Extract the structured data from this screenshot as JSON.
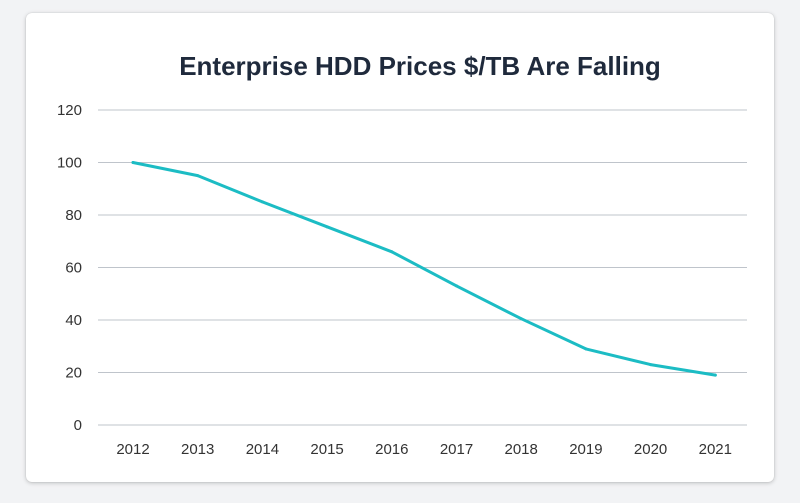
{
  "chart_data": {
    "type": "line",
    "title": "Enterprise HDD Prices $/TB Are Falling",
    "xlabel": "",
    "ylabel": "",
    "categories": [
      "2012",
      "2013",
      "2014",
      "2015",
      "2016",
      "2017",
      "2018",
      "2019",
      "2020",
      "2021"
    ],
    "series": [
      {
        "values": [
          100,
          95,
          85,
          75.5,
          66,
          53,
          40.5,
          29,
          23,
          19
        ]
      }
    ],
    "ylim": [
      0,
      120
    ],
    "yticks": [
      "0",
      "20",
      "40",
      "60",
      "80",
      "100",
      "120"
    ],
    "grid": true,
    "legend": "none",
    "line_color": "#1cbcc4"
  }
}
